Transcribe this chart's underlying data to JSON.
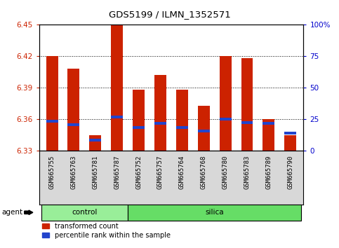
{
  "title": "GDS5199 / ILMN_1352571",
  "samples": [
    "GSM665755",
    "GSM665763",
    "GSM665781",
    "GSM665787",
    "GSM665752",
    "GSM665757",
    "GSM665764",
    "GSM665768",
    "GSM665780",
    "GSM665783",
    "GSM665789",
    "GSM665790"
  ],
  "red_values": [
    6.42,
    6.408,
    6.345,
    6.452,
    6.388,
    6.402,
    6.388,
    6.373,
    6.42,
    6.418,
    6.36,
    6.345
  ],
  "blue_values": [
    6.358,
    6.355,
    6.34,
    6.362,
    6.352,
    6.356,
    6.352,
    6.349,
    6.36,
    6.357,
    6.356,
    6.347
  ],
  "ymin": 6.33,
  "ymax": 6.45,
  "yticks": [
    6.33,
    6.36,
    6.39,
    6.42,
    6.45
  ],
  "y2ticks": [
    0,
    25,
    50,
    75,
    100
  ],
  "y2labels": [
    "0",
    "25",
    "50",
    "75",
    "100%"
  ],
  "bar_color": "#CC2200",
  "blue_color": "#2244CC",
  "bg_color": "#FFFFFF",
  "control_color": "#99EE99",
  "silica_color": "#66DD66",
  "label_color_left": "#CC2200",
  "label_color_right": "#0000CC",
  "bar_width": 0.55,
  "legend_items": [
    "transformed count",
    "percentile rank within the sample"
  ],
  "agent_label": "agent",
  "groups_info": [
    {
      "label": "control",
      "start": 0,
      "end": 3
    },
    {
      "label": "silica",
      "start": 4,
      "end": 11
    }
  ]
}
